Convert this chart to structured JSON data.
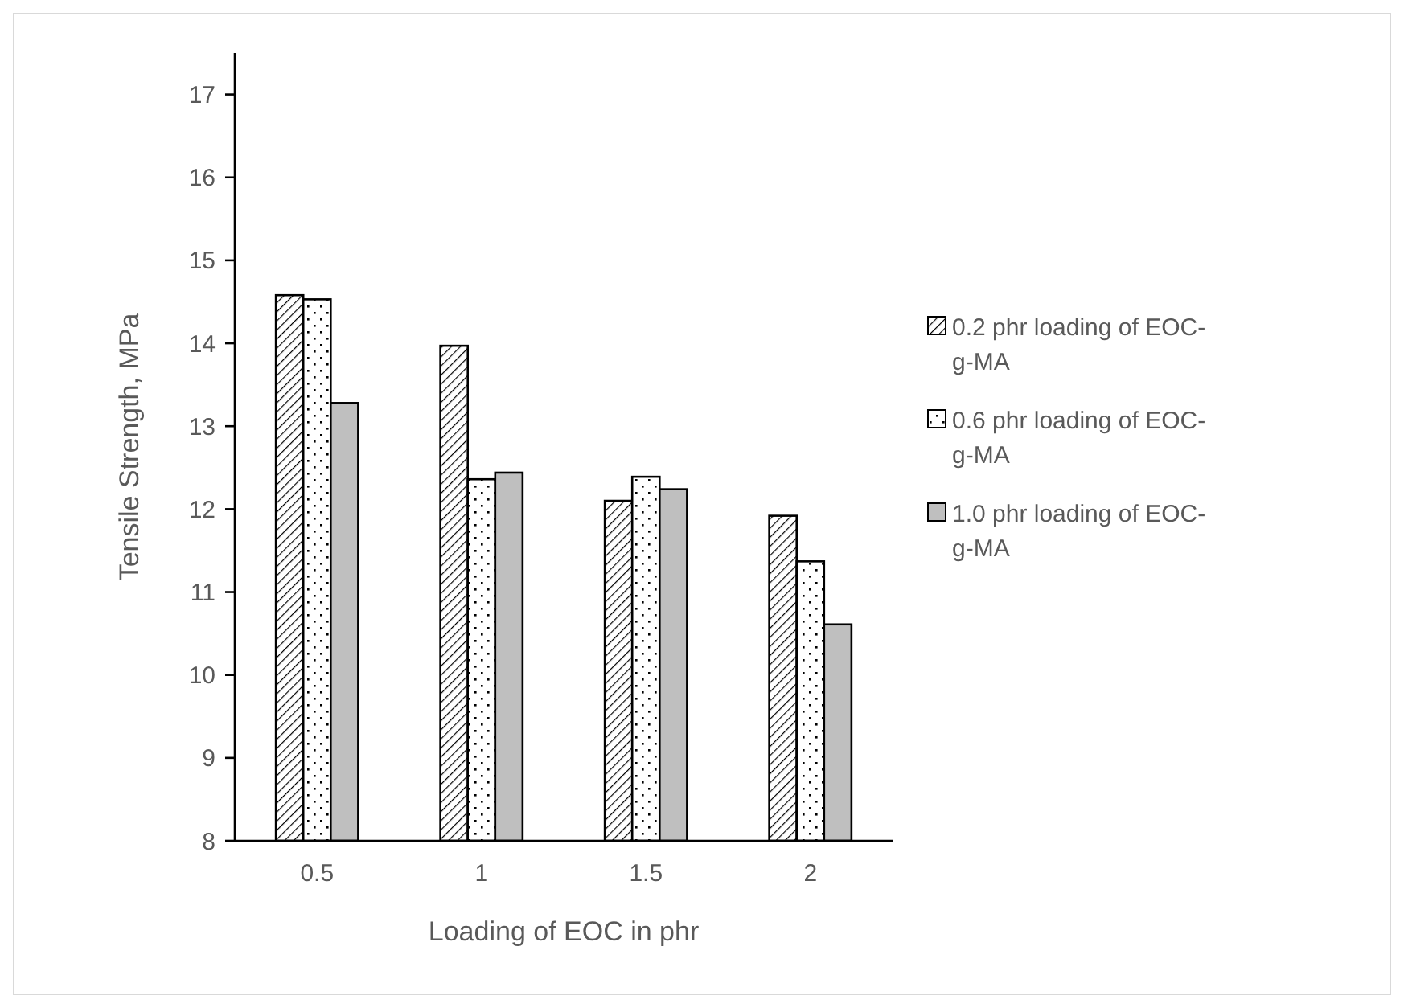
{
  "chart_data": {
    "type": "bar",
    "xlabel": "Loading of EOC in phr",
    "ylabel": "Tensile Strength, MPa",
    "categories": [
      "0.5",
      "1",
      "1.5",
      "2"
    ],
    "series": [
      {
        "name": "0.2 phr loading of EOC-g-MA",
        "color": "#000000",
        "values": [
          14.58,
          13.97,
          12.1,
          11.92
        ]
      },
      {
        "name": "0.6 phr loading of EOC-g-MA",
        "color": "#000000",
        "values": [
          14.53,
          12.36,
          12.39,
          11.37
        ]
      },
      {
        "name": "1.0 phr loading of EOC-g-MA",
        "color": "#bfbfbf",
        "values": [
          13.28,
          12.44,
          12.24,
          10.61
        ]
      }
    ],
    "ylim": [
      8,
      17.5
    ],
    "yticks": [
      8,
      9,
      10,
      11,
      12,
      13,
      14,
      15,
      16,
      17
    ],
    "grid": false,
    "legend": "right"
  }
}
